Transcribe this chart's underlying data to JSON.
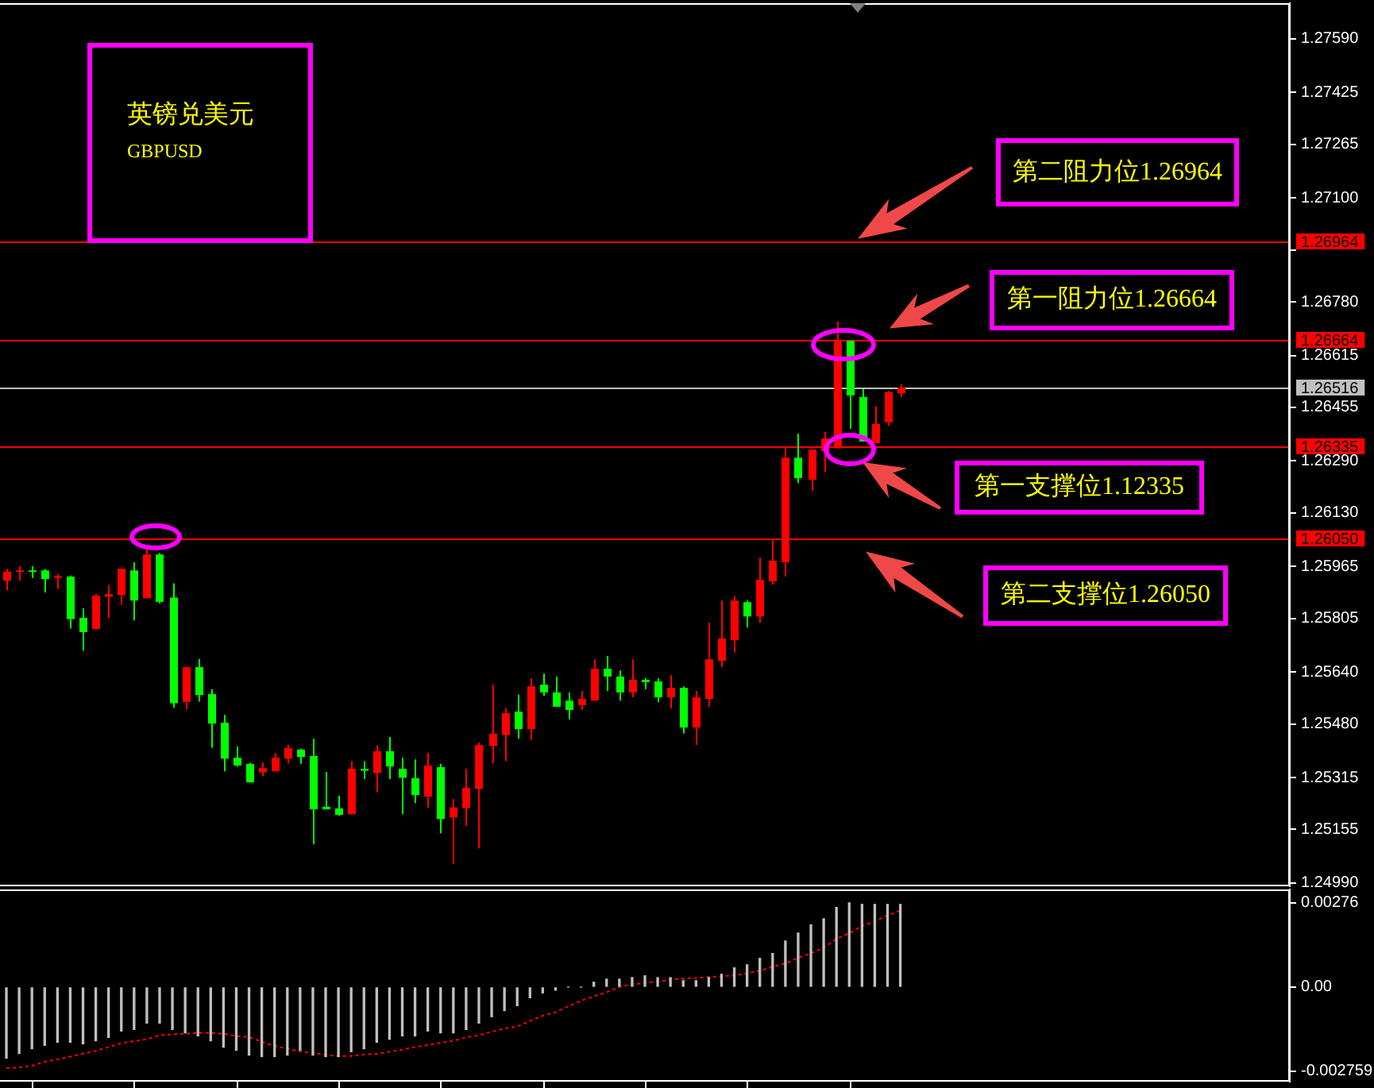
{
  "chart_data": [
    {
      "type": "candlestick",
      "title": "英镑兑美元",
      "subtitle": "GBPUSD",
      "categories": [
        null,
        null,
        null,
        null,
        null,
        null,
        null,
        null,
        null,
        null,
        null,
        null,
        null,
        null,
        null,
        null,
        null,
        null,
        null,
        null,
        null,
        null,
        null,
        null,
        null,
        null,
        null,
        null,
        null,
        null,
        null,
        null,
        null,
        null,
        null,
        null,
        null,
        null,
        null,
        null,
        null,
        null,
        null,
        null,
        null,
        null,
        null,
        null,
        null,
        null,
        null,
        null,
        null,
        null,
        null,
        null,
        null,
        null,
        null,
        null,
        null,
        null,
        null,
        null,
        null,
        null,
        null,
        null,
        null,
        null,
        null,
        null,
        null,
        null,
        null,
        null,
        null,
        null,
        null,
        null,
        null,
        null,
        null,
        null,
        null,
        null,
        null,
        null,
        null,
        null,
        null,
        null,
        null,
        null,
        null,
        null,
        null,
        null,
        null,
        null,
        null
      ],
      "ohlc": [
        [
          1.25921,
          1.25957,
          1.25892,
          1.25949
        ],
        [
          1.2595,
          1.25966,
          1.25921,
          1.25953
        ],
        [
          1.25953,
          1.25966,
          1.25929,
          1.2595
        ],
        [
          1.25953,
          1.25957,
          1.25885,
          1.25926
        ],
        [
          1.25931,
          1.25942,
          1.25896,
          1.25935
        ],
        [
          1.25934,
          1.25937,
          1.25774,
          1.25803
        ],
        [
          1.25807,
          1.25836,
          1.25706,
          1.25763
        ],
        [
          1.25772,
          1.2588,
          1.25772,
          1.25875
        ],
        [
          1.25872,
          1.25908,
          1.25807,
          1.2588
        ],
        [
          1.25877,
          1.25958,
          1.25847,
          1.25958
        ],
        [
          1.25953,
          1.25978,
          1.25799,
          1.2586
        ],
        [
          1.25867,
          1.26032,
          1.25867,
          1.26002
        ],
        [
          1.26002,
          1.26006,
          1.25851,
          1.25856
        ],
        [
          1.25869,
          1.25913,
          1.2553,
          1.25544
        ],
        [
          1.25548,
          1.25655,
          1.25525,
          1.25655
        ],
        [
          1.25655,
          1.2568,
          1.25549,
          1.25569
        ],
        [
          1.25572,
          1.25587,
          1.25407,
          1.25481
        ],
        [
          1.25484,
          1.25508,
          1.25334,
          1.25373
        ],
        [
          1.25376,
          1.25411,
          1.25349,
          1.25352
        ],
        [
          1.25357,
          1.2536,
          1.253,
          1.253
        ],
        [
          1.25331,
          1.25362,
          1.25319,
          1.25344
        ],
        [
          1.25334,
          1.25391,
          1.25334,
          1.25376
        ],
        [
          1.25373,
          1.25416,
          1.25358,
          1.25406
        ],
        [
          1.25401,
          1.25404,
          1.25357,
          1.25378
        ],
        [
          1.25381,
          1.25435,
          1.25109,
          1.25217
        ],
        [
          1.25225,
          1.25332,
          1.25217,
          1.25217
        ],
        [
          1.2522,
          1.25259,
          1.25197,
          1.252
        ],
        [
          1.25202,
          1.25365,
          1.25202,
          1.25342
        ],
        [
          1.25342,
          1.25365,
          1.2531,
          1.25336
        ],
        [
          1.25329,
          1.25414,
          1.25269,
          1.25396
        ],
        [
          1.25396,
          1.2544,
          1.2531,
          1.25349
        ],
        [
          1.25342,
          1.25376,
          1.25202,
          1.25314
        ],
        [
          1.25313,
          1.25371,
          1.25236,
          1.25261
        ],
        [
          1.25256,
          1.25391,
          1.25222,
          1.25352
        ],
        [
          1.25347,
          1.25357,
          1.25143,
          1.25187
        ],
        [
          1.25192,
          1.25249,
          1.25049,
          1.25223
        ],
        [
          1.25221,
          1.25342,
          1.25166,
          1.25283
        ],
        [
          1.2528,
          1.25423,
          1.25097,
          1.25415
        ],
        [
          1.25412,
          1.25601,
          1.25358,
          1.2545
        ],
        [
          1.25446,
          1.25528,
          1.25366,
          1.25513
        ],
        [
          1.25518,
          1.2557,
          1.25435,
          1.25464
        ],
        [
          1.25464,
          1.25621,
          1.2543,
          1.25596
        ],
        [
          1.25601,
          1.25635,
          1.25567,
          1.25577
        ],
        [
          1.25577,
          1.25626,
          1.25533,
          1.25533
        ],
        [
          1.25552,
          1.25577,
          1.25494,
          1.25523
        ],
        [
          1.25538,
          1.25582,
          1.25523,
          1.25557
        ],
        [
          1.25552,
          1.25679,
          1.25552,
          1.2565
        ],
        [
          1.2565,
          1.25689,
          1.25582,
          1.25626
        ],
        [
          1.25626,
          1.25645,
          1.25552,
          1.25577
        ],
        [
          1.25577,
          1.25679,
          1.25562,
          1.25616
        ],
        [
          1.25616,
          1.25621,
          1.25587,
          1.25609
        ],
        [
          1.25611,
          1.25621,
          1.25547,
          1.25562
        ],
        [
          1.25562,
          1.2563,
          1.25528,
          1.25591
        ],
        [
          1.25591,
          1.25596,
          1.2545,
          1.25469
        ],
        [
          1.25469,
          1.25582,
          1.25415,
          1.25562
        ],
        [
          1.25557,
          1.25792,
          1.25533,
          1.25679
        ],
        [
          1.25674,
          1.2586,
          1.25655,
          1.25743
        ],
        [
          1.25738,
          1.25875,
          1.25699,
          1.2586
        ],
        [
          1.25855,
          1.2586,
          1.25777,
          1.25811
        ],
        [
          1.25811,
          1.25992,
          1.25792,
          1.25924
        ],
        [
          1.25919,
          1.26051,
          1.25909,
          1.25983
        ],
        [
          1.25978,
          1.26331,
          1.25934,
          1.263
        ],
        [
          1.263,
          1.26374,
          1.26222,
          1.26237
        ],
        [
          1.26232,
          1.26325,
          1.26198,
          1.26325
        ],
        [
          1.2632,
          1.26379,
          1.26256,
          1.26359
        ],
        [
          1.26329,
          1.2672,
          1.26329,
          1.2666
        ],
        [
          1.2666,
          1.2666,
          1.26389,
          1.26492
        ],
        [
          1.26487,
          1.26511,
          1.2635,
          1.2635
        ],
        [
          1.26345,
          1.26458,
          1.26345,
          1.26404
        ],
        [
          1.26409,
          1.26506,
          1.26399,
          1.26502
        ],
        [
          1.26498,
          1.26526,
          1.26487,
          1.26516
        ],
        null,
        null,
        null,
        null,
        null,
        null,
        null,
        null,
        null,
        null,
        null,
        null,
        null,
        null,
        null,
        null,
        null,
        null,
        null,
        null,
        null,
        null,
        null,
        null,
        null,
        null,
        null,
        null,
        null,
        null
      ],
      "colors": [
        "#ff0000",
        "#ff0000",
        "#00ff00",
        "#00ff00",
        "#ff0000",
        "#00ff00",
        "#00ff00",
        "#ff0000",
        "#ff0000",
        "#ff0000",
        "#00ff00",
        "#ff0000",
        "#00ff00",
        "#00ff00",
        "#ff0000",
        "#00ff00",
        "#00ff00",
        "#00ff00",
        "#00ff00",
        "#00ff00",
        "#ff0000",
        "#ff0000",
        "#ff0000",
        "#00ff00",
        "#00ff00",
        "#00ff00",
        "#00ff00",
        "#ff0000",
        "#00ff00",
        "#ff0000",
        "#00ff00",
        "#00ff00",
        "#00ff00",
        "#ff0000",
        "#00ff00",
        "#ff0000",
        "#ff0000",
        "#ff0000",
        "#ff0000",
        "#ff0000",
        "#00ff00",
        "#ff0000",
        "#00ff00",
        "#00ff00",
        "#00ff00",
        "#ff0000",
        "#ff0000",
        "#00ff00",
        "#00ff00",
        "#ff0000",
        "#00ff00",
        "#00ff00",
        "#ff0000",
        "#00ff00",
        "#ff0000",
        "#ff0000",
        "#ff0000",
        "#ff0000",
        "#00ff00",
        "#ff0000",
        "#ff0000",
        "#ff0000",
        "#00ff00",
        "#ff0000",
        "#ff0000",
        "#ff0000",
        "#00ff00",
        "#00ff00",
        "#ff0000",
        "#ff0000",
        "#ff0000",
        null,
        null,
        null,
        null,
        null,
        null,
        null,
        null,
        null,
        null,
        null,
        null,
        null,
        null,
        null,
        null,
        null,
        null,
        null,
        null,
        null,
        null,
        null,
        null,
        null,
        null,
        null,
        null,
        null,
        null
      ],
      "ylim": [
        1.2498,
        1.277
      ],
      "yticks": [
        {
          "value": 1.2759,
          "label": "1.27590"
        },
        1.27425,
        1.27265,
        {
          "value": 1.271,
          "label": "1.27100"
        },
        {
          "value": 1.2694,
          "label": null
        },
        {
          "value": 1.2678,
          "label": "1.26780"
        },
        1.26615,
        1.26455,
        {
          "value": 1.2629,
          "label": "1.26290"
        },
        {
          "value": 1.2613,
          "label": "1.26130"
        },
        1.25965,
        1.25805,
        {
          "value": 1.2564,
          "label": "1.25640"
        },
        {
          "value": 1.2548,
          "label": "1.25480"
        },
        1.25315,
        1.25155,
        {
          "value": 1.2499,
          "label": "1.24990"
        }
      ],
      "tick_labels": "y",
      "ref_lines": [
        {
          "axis": "y",
          "value": 1.26964,
          "label": "1.26964",
          "color": "#ff0000"
        },
        {
          "axis": "y",
          "value": 1.26664,
          "label": "1.26664",
          "color": "#ff0000"
        },
        {
          "axis": "y",
          "value": 1.26516,
          "label": "1.26516",
          "color": "#c0c0c0"
        },
        {
          "axis": "y",
          "value": 1.26335,
          "label": "1.26335",
          "color": "#ff0000"
        },
        {
          "axis": "y",
          "value": 1.2605,
          "label": "1.26050",
          "color": "#ff0000"
        }
      ],
      "annotations": [
        {
          "text": "第二阻力位1.26964",
          "y": 1.26964
        },
        {
          "text": "第一阻力位1.26664",
          "y": 1.26664
        },
        {
          "text": "第一支撑位1.12335",
          "y": 1.26335
        },
        {
          "text": "第二支撑位1.26050",
          "y": 1.2605
        }
      ]
    },
    {
      "type": "bar",
      "categories": [
        null,
        null,
        null,
        null,
        null,
        null,
        null,
        null,
        null,
        null,
        null,
        null,
        null,
        null,
        null,
        null,
        null,
        null,
        null,
        null,
        null,
        null,
        null,
        null,
        null,
        null,
        null,
        null,
        null,
        null,
        null,
        null,
        null,
        null,
        null,
        null,
        null,
        null,
        null,
        null,
        null,
        null,
        null,
        null,
        null,
        null,
        null,
        null,
        null,
        null,
        null,
        null,
        null,
        null,
        null,
        null,
        null,
        null,
        null,
        null,
        null,
        null,
        null,
        null,
        null,
        null,
        null,
        null,
        null,
        null,
        null,
        null,
        null,
        null,
        null,
        null,
        null,
        null,
        null,
        null,
        null,
        null,
        null,
        null,
        null,
        null,
        null,
        null,
        null,
        null,
        null,
        null,
        null,
        null,
        null,
        null,
        null,
        null,
        null,
        null,
        null
      ],
      "series": [
        {
          "type": "bar",
          "color": "#c0c0c0",
          "values": [
            -0.00233,
            -0.00218,
            -0.00202,
            -0.00191,
            -0.00181,
            -0.00181,
            -0.00186,
            -0.00176,
            -0.00165,
            -0.00144,
            -0.00139,
            -0.00118,
            -0.00118,
            -0.00139,
            -0.0015,
            -0.0016,
            -0.00176,
            -0.00197,
            -0.00207,
            -0.00223,
            -0.00228,
            -0.00228,
            -0.00223,
            -0.00207,
            -0.00223,
            -0.00228,
            -0.00228,
            -0.00212,
            -0.00202,
            -0.00181,
            -0.00171,
            -0.0016,
            -0.0016,
            -0.00144,
            -0.0015,
            -0.0015,
            -0.00139,
            -0.00118,
            -0.00097,
            -0.00077,
            -0.00061,
            -0.00035,
            -0.00019,
            -0.0001,
            0,
            0,
            0.00016,
            0.00026,
            0.00026,
            0.00031,
            0.00037,
            0.00031,
            0.00031,
            0.00021,
            0.00021,
            0.00031,
            0.00042,
            0.00063,
            0.00073,
            0.00094,
            0.0011,
            0.00151,
            0.00177,
            0.00204,
            0.00224,
            0.00261,
            0.00276,
            0.00271,
            0.00271,
            0.00271,
            0.00271,
            null,
            null,
            null,
            null,
            null,
            null,
            null,
            null,
            null,
            null,
            null,
            null,
            null,
            null,
            null,
            null,
            null,
            null,
            null,
            null,
            null,
            null,
            null,
            null,
            null,
            null,
            null,
            null,
            null,
            null
          ]
        },
        {
          "type": "line",
          "color": "#ff0000",
          "values": [
            -0.00266,
            -0.00263,
            -0.00258,
            -0.00245,
            -0.00237,
            -0.00228,
            -0.00218,
            -0.00209,
            -0.00197,
            -0.00184,
            -0.00177,
            -0.00171,
            -0.00158,
            -0.00155,
            -0.00153,
            -0.0015,
            -0.0015,
            -0.00153,
            -0.0016,
            -0.00164,
            -0.00179,
            -0.00193,
            -0.00202,
            -0.00211,
            -0.00216,
            -0.00223,
            -0.00226,
            -0.00226,
            -0.00221,
            -0.00219,
            -0.00212,
            -0.00205,
            -0.00197,
            -0.0019,
            -0.00183,
            -0.00176,
            -0.00165,
            -0.00158,
            -0.00146,
            -0.00136,
            -0.00129,
            -0.00111,
            -0.00094,
            -0.00082,
            -0.00063,
            -0.00045,
            -0.0003,
            -0.00017,
            0,
            0.0001,
            0.00012,
            0.00019,
            0.00024,
            0.00028,
            0.0003,
            0.00033,
            0.00035,
            0.00038,
            0.00045,
            0.00054,
            0.00066,
            0.00078,
            0.00096,
            0.00111,
            0.00129,
            0.00158,
            0.00176,
            0.002,
            0.00216,
            0.00235,
            0.00251,
            null,
            null,
            null,
            null,
            null,
            null,
            null,
            null,
            null,
            null,
            null,
            null,
            null,
            null,
            null,
            null,
            null,
            null,
            null,
            null,
            null,
            null,
            null,
            null,
            null,
            null,
            null,
            null,
            null,
            null
          ]
        }
      ],
      "line_style": "dotted",
      "ylim": [
        -0.0031,
        0.0032
      ],
      "yticks": [
        {
          "value": 0.00276,
          "label": "0.00276"
        },
        {
          "value": 0,
          "label": "0.00"
        },
        {
          "value": -0.002759,
          "label": "-0.002759"
        }
      ],
      "tick_labels": "y"
    }
  ]
}
